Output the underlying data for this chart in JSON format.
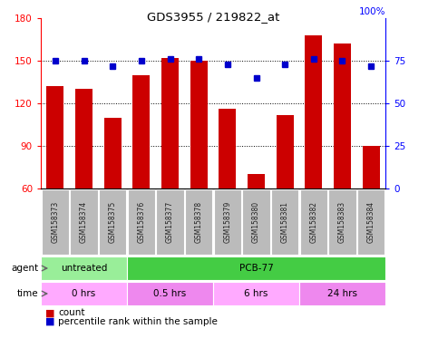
{
  "title": "GDS3955 / 219822_at",
  "samples": [
    "GSM158373",
    "GSM158374",
    "GSM158375",
    "GSM158376",
    "GSM158377",
    "GSM158378",
    "GSM158379",
    "GSM158380",
    "GSM158381",
    "GSM158382",
    "GSM158383",
    "GSM158384"
  ],
  "counts": [
    132,
    130,
    110,
    140,
    152,
    150,
    116,
    70,
    112,
    168,
    162,
    90
  ],
  "percentiles": [
    75,
    75,
    72,
    75,
    76,
    76,
    73,
    65,
    73,
    76,
    75,
    72
  ],
  "ylim_left": [
    60,
    180
  ],
  "ylim_right": [
    0,
    100
  ],
  "yticks_left": [
    60,
    90,
    120,
    150,
    180
  ],
  "yticks_right": [
    0,
    25,
    50,
    75
  ],
  "bar_color": "#cc0000",
  "dot_color": "#0000cc",
  "bg_color": "#ffffff",
  "agent_labels": [
    {
      "label": "untreated",
      "start": 0,
      "end": 3,
      "color": "#99ee99"
    },
    {
      "label": "PCB-77",
      "start": 3,
      "end": 12,
      "color": "#44cc44"
    }
  ],
  "time_labels": [
    {
      "label": "0 hrs",
      "start": 0,
      "end": 3,
      "color": "#ffaaff"
    },
    {
      "label": "0.5 hrs",
      "start": 3,
      "end": 6,
      "color": "#ee88ee"
    },
    {
      "label": "6 hrs",
      "start": 6,
      "end": 9,
      "color": "#ffaaff"
    },
    {
      "label": "24 hrs",
      "start": 9,
      "end": 12,
      "color": "#ee88ee"
    }
  ],
  "tick_label_bg": "#bbbbbb",
  "grid_dotted_at": [
    90,
    120,
    150
  ]
}
